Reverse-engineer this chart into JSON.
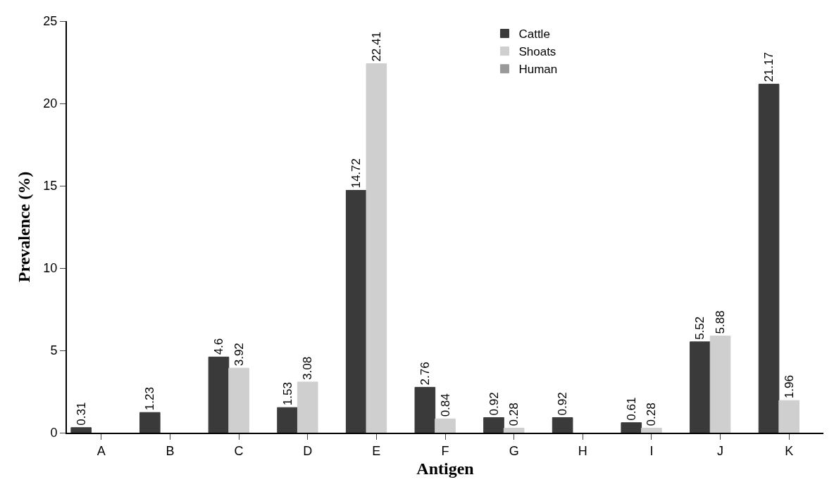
{
  "chart_data": {
    "type": "bar",
    "xlabel": "Antigen",
    "ylabel": "Prevalence (%)",
    "categories": [
      "A",
      "B",
      "C",
      "D",
      "E",
      "F",
      "G",
      "H",
      "I",
      "J",
      "K"
    ],
    "series": [
      {
        "name": "Cattle",
        "color": "#3a3a3a",
        "values": [
          0.31,
          1.23,
          4.6,
          1.53,
          14.72,
          2.76,
          0.92,
          0.92,
          0.61,
          5.52,
          21.17
        ]
      },
      {
        "name": "Shoats",
        "color": "#cfcfcf",
        "values": [
          null,
          null,
          3.92,
          3.08,
          22.41,
          0.84,
          0.28,
          null,
          0.28,
          5.88,
          1.96
        ]
      },
      {
        "name": "Human",
        "color": "#999999",
        "values": [
          null,
          null,
          null,
          null,
          null,
          null,
          null,
          null,
          null,
          null,
          null
        ]
      }
    ],
    "ylim": [
      0,
      25
    ],
    "yticks": [
      0,
      5,
      10,
      15,
      20,
      25
    ],
    "grid": false,
    "legend": "top",
    "data_labels": true
  }
}
